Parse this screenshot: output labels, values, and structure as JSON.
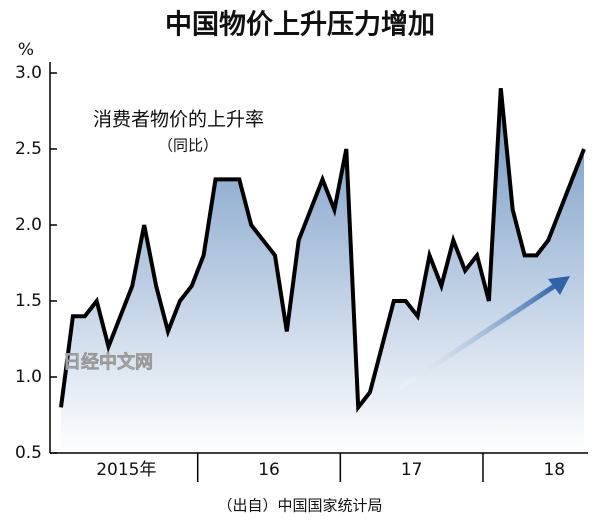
{
  "chart_data": {
    "type": "area",
    "title": "中国物价上升压力增加",
    "y_unit": "%",
    "annotation": "消费者物价的上升率",
    "annotation_sub": "（同比）",
    "source": "（出自）中国国家统计局",
    "watermark": "日经中文网",
    "categories": [
      null,
      null,
      null,
      null,
      null,
      "2015年",
      null,
      null,
      null,
      null,
      null,
      null,
      null,
      null,
      null,
      null,
      null,
      "16",
      null,
      null,
      null,
      null,
      null,
      null,
      null,
      null,
      null,
      null,
      null,
      "17",
      null,
      null,
      null,
      null,
      null,
      null,
      null,
      null,
      null,
      null,
      null,
      "18",
      null,
      null,
      null
    ],
    "values": [
      0.8,
      1.4,
      1.4,
      1.5,
      1.2,
      1.4,
      1.6,
      2.0,
      1.6,
      1.3,
      1.5,
      1.6,
      1.8,
      2.3,
      2.3,
      2.3,
      2.0,
      1.9,
      1.8,
      1.3,
      1.9,
      2.1,
      2.3,
      2.1,
      2.5,
      0.8,
      0.9,
      1.2,
      1.5,
      1.5,
      1.4,
      1.8,
      1.6,
      1.9,
      1.7,
      1.8,
      1.5,
      2.9,
      2.1,
      1.8,
      1.8,
      1.9,
      2.1,
      2.3,
      2.5
    ],
    "color": "#000000",
    "fill_color": "#6f95c3",
    "ylim": [
      0.5,
      3.0
    ],
    "yticks": [
      0.5,
      {
        "value": 1.0,
        "label": "1.0"
      },
      1.5,
      {
        "value": 2.0,
        "label": "2.0"
      },
      2.5,
      {
        "value": 3.0,
        "label": "3.0"
      }
    ]
  }
}
